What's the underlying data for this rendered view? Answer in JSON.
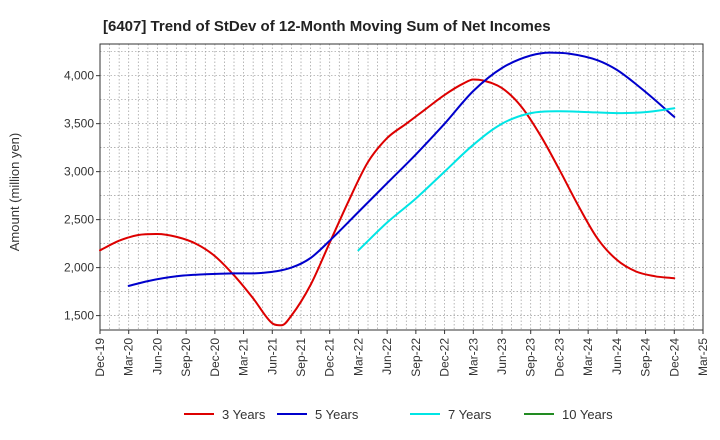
{
  "chart_data": {
    "type": "line",
    "title": "[6407]  Trend of StDev of 12-Month Moving Sum of Net Incomes",
    "ylabel": "Amount (million yen)",
    "xlabel": "",
    "x_ticks": [
      "Dec-19",
      "Mar-20",
      "Jun-20",
      "Sep-20",
      "Dec-20",
      "Mar-21",
      "Jun-21",
      "Sep-21",
      "Dec-21",
      "Mar-22",
      "Jun-22",
      "Sep-22",
      "Dec-22",
      "Mar-23",
      "Jun-23",
      "Sep-23",
      "Dec-23",
      "Mar-24",
      "Jun-24",
      "Sep-24",
      "Dec-24",
      "Mar-25"
    ],
    "y_ticks": [
      "1,500",
      "2,000",
      "2,500",
      "3,000",
      "3,500",
      "4,000"
    ],
    "y_tick_values": [
      1500,
      2000,
      2500,
      3000,
      3500,
      4000
    ],
    "ylim": [
      1350,
      4330
    ],
    "x_range_months": [
      "2019-12",
      "2025-03"
    ],
    "grid": true,
    "legend_position": "bottom",
    "series": [
      {
        "name": "3 Years",
        "color": "#dd0000",
        "points": [
          [
            "2019-12",
            2180
          ],
          [
            "2020-02",
            2280
          ],
          [
            "2020-04",
            2340
          ],
          [
            "2020-06",
            2350
          ],
          [
            "2020-08",
            2320
          ],
          [
            "2020-10",
            2250
          ],
          [
            "2020-12",
            2120
          ],
          [
            "2021-02",
            1920
          ],
          [
            "2021-04",
            1680
          ],
          [
            "2021-06",
            1420
          ],
          [
            "2021-07",
            1400
          ],
          [
            "2021-08",
            1500
          ],
          [
            "2021-10",
            1820
          ],
          [
            "2021-12",
            2260
          ],
          [
            "2022-02",
            2700
          ],
          [
            "2022-04",
            3100
          ],
          [
            "2022-06",
            3350
          ],
          [
            "2022-08",
            3500
          ],
          [
            "2022-10",
            3650
          ],
          [
            "2022-12",
            3800
          ],
          [
            "2023-02",
            3920
          ],
          [
            "2023-03",
            3960
          ],
          [
            "2023-04",
            3950
          ],
          [
            "2023-06",
            3870
          ],
          [
            "2023-08",
            3680
          ],
          [
            "2023-10",
            3380
          ],
          [
            "2023-12",
            3020
          ],
          [
            "2024-02",
            2640
          ],
          [
            "2024-04",
            2300
          ],
          [
            "2024-06",
            2080
          ],
          [
            "2024-08",
            1960
          ],
          [
            "2024-10",
            1910
          ],
          [
            "2024-12",
            1890
          ]
        ]
      },
      {
        "name": "5 Years",
        "color": "#0000cc",
        "points": [
          [
            "2020-03",
            1810
          ],
          [
            "2020-05",
            1860
          ],
          [
            "2020-08",
            1910
          ],
          [
            "2020-11",
            1930
          ],
          [
            "2021-02",
            1940
          ],
          [
            "2021-05",
            1945
          ],
          [
            "2021-08",
            2000
          ],
          [
            "2021-10",
            2100
          ],
          [
            "2021-12",
            2280
          ],
          [
            "2022-03",
            2580
          ],
          [
            "2022-06",
            2880
          ],
          [
            "2022-09",
            3180
          ],
          [
            "2022-12",
            3500
          ],
          [
            "2023-03",
            3840
          ],
          [
            "2023-06",
            4080
          ],
          [
            "2023-09",
            4210
          ],
          [
            "2023-11",
            4240
          ],
          [
            "2024-01",
            4230
          ],
          [
            "2024-04",
            4160
          ],
          [
            "2024-06",
            4060
          ],
          [
            "2024-09",
            3830
          ],
          [
            "2024-12",
            3570
          ]
        ]
      },
      {
        "name": "7 Years",
        "color": "#00e5e5",
        "points": [
          [
            "2022-03",
            2180
          ],
          [
            "2022-06",
            2470
          ],
          [
            "2022-09",
            2720
          ],
          [
            "2022-12",
            3000
          ],
          [
            "2023-03",
            3280
          ],
          [
            "2023-06",
            3500
          ],
          [
            "2023-09",
            3610
          ],
          [
            "2023-12",
            3630
          ],
          [
            "2024-03",
            3620
          ],
          [
            "2024-06",
            3610
          ],
          [
            "2024-09",
            3620
          ],
          [
            "2024-12",
            3660
          ]
        ]
      },
      {
        "name": "10 Years",
        "color": "#228b22",
        "points": []
      }
    ]
  }
}
